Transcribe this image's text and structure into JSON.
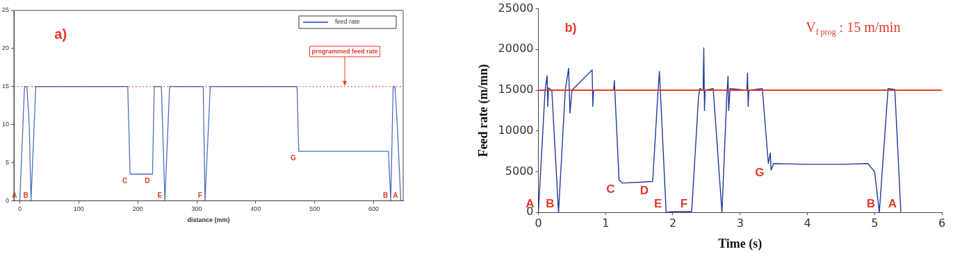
{
  "chart_data": [
    {
      "type": "line",
      "xlabel": "distance (mm)",
      "xlim": [
        -10,
        650
      ],
      "xticks": [
        0,
        100,
        200,
        300,
        400,
        500,
        600
      ],
      "ylim": [
        0,
        25
      ],
      "yticks": [
        0,
        5,
        10,
        15,
        20,
        25
      ],
      "grid": false,
      "legend": "top right",
      "marker": "none",
      "line_style": "solid",
      "series": [
        {
          "name": "feed rate",
          "color": "#4a6fc0",
          "x": [
            0,
            8,
            12,
            16,
            19,
            27,
            183,
            187,
            225,
            228,
            240,
            246,
            254,
            311,
            314,
            323,
            470,
            473,
            625,
            629,
            633,
            636,
            640,
            646
          ],
          "values": [
            0,
            15,
            15,
            10,
            0,
            15,
            15,
            3.5,
            3.5,
            15,
            15,
            0,
            15,
            15,
            0,
            15,
            15,
            6.5,
            6.5,
            0,
            15,
            15,
            10,
            0
          ]
        }
      ],
      "ref_lines": [
        {
          "axis": "y",
          "value": 15,
          "label": "programmed feed rate",
          "color": "#e8382c",
          "line_style": "dotted"
        }
      ],
      "annotations": [
        "a)",
        {
          "text": "A",
          "x": 0,
          "y": 0
        },
        {
          "text": "B",
          "x": 19,
          "y": 0
        },
        {
          "text": "C",
          "x": 187,
          "y": 3.5
        },
        {
          "text": "D",
          "x": 225,
          "y": 3.5
        },
        {
          "text": "E",
          "x": 246,
          "y": 0
        },
        {
          "text": "F",
          "x": 314,
          "y": 0
        },
        {
          "text": "G",
          "x": 473,
          "y": 6.5
        },
        {
          "text": "B",
          "x": 629,
          "y": 0
        },
        {
          "text": "A",
          "x": 646,
          "y": 0
        }
      ]
    },
    {
      "type": "line",
      "xlabel": "Time (s)",
      "ylabel": "Feed rate (m/mn)",
      "xlim": [
        0,
        6
      ],
      "xticks": [
        0,
        1,
        2,
        3,
        4,
        5,
        6
      ],
      "ylim": [
        0,
        25000
      ],
      "yticks": [
        0,
        5000,
        10000,
        15000,
        20000,
        25000
      ],
      "grid": false,
      "marker": "none",
      "line_style": "solid",
      "series": [
        {
          "color": "#1f3a9e",
          "x": [
            0,
            0.1,
            0.13,
            0.14,
            0.15,
            0.2,
            0.3,
            0.4,
            0.45,
            0.47,
            0.5,
            0.8,
            0.81,
            0.82,
            1.12,
            1.13,
            1.2,
            1.25,
            1.5,
            1.7,
            1.78,
            1.8,
            1.9,
            2.0,
            2.28,
            2.38,
            2.4,
            2.45,
            2.46,
            2.47,
            2.48,
            2.6,
            2.73,
            2.8,
            2.82,
            2.83,
            2.85,
            3.1,
            3.11,
            3.12,
            3.13,
            3.33,
            3.42,
            3.45,
            3.46,
            3.5,
            4.0,
            4.5,
            4.9,
            5.0,
            5.07,
            5.2,
            5.3,
            5.31,
            5.39
          ],
          "values": [
            0,
            15000,
            16800,
            13000,
            15300,
            15000,
            0,
            15000,
            17700,
            12200,
            15000,
            17500,
            13000,
            15000,
            15000,
            16200,
            4000,
            3600,
            3700,
            3800,
            15000,
            17300,
            0,
            100,
            100,
            14000,
            15200,
            15000,
            20200,
            12500,
            15000,
            15200,
            0,
            14000,
            16700,
            12500,
            15200,
            15000,
            17100,
            13000,
            15000,
            15200,
            6000,
            7300,
            5200,
            6000,
            5900,
            5900,
            6000,
            5000,
            0,
            15200,
            15100,
            13500,
            0
          ]
        }
      ],
      "ref_lines": [
        {
          "axis": "y",
          "value": 15000,
          "color": "#e8382c",
          "line_style": "solid"
        }
      ],
      "annotations": [
        "b)",
        "V$_{f prog}$ : 15 m/min",
        {
          "text": "A",
          "x": 0,
          "y": 0
        },
        {
          "text": "B",
          "x": 0.3,
          "y": 0
        },
        {
          "text": "C",
          "x": 1.2,
          "y": 4000
        },
        {
          "text": "D",
          "x": 1.7,
          "y": 3800
        },
        {
          "text": "E",
          "x": 1.9,
          "y": 0
        },
        {
          "text": "F",
          "x": 2.28,
          "y": 100
        },
        {
          "text": "G",
          "x": 3.42,
          "y": 6000
        },
        {
          "text": "B",
          "x": 5.07,
          "y": 0
        },
        {
          "text": "A",
          "x": 5.39,
          "y": 0
        }
      ]
    }
  ]
}
